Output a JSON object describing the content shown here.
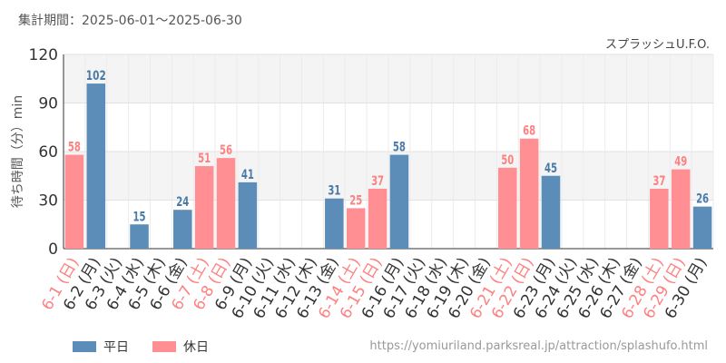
{
  "header": {
    "period_label": "集計期間：2025-06-01～2025-06-30",
    "attraction_name": "スプラッシュU.F.O."
  },
  "legend": {
    "weekday_label": "平日",
    "holiday_label": "休日"
  },
  "footer": {
    "source_url": "https://yomiuriland.parksreal.jp/attraction/splashufo.html"
  },
  "colors": {
    "weekday": "#5b8db8",
    "holiday": "#ff8f93",
    "holiday_text": "#ff8080",
    "weekday_text": "#4a7aa8"
  },
  "chart_data": {
    "type": "bar",
    "ylabel": "待ち時間（分）min",
    "ylim": [
      0,
      120
    ],
    "yticks": [
      0,
      30,
      60,
      90,
      120
    ],
    "categories": [
      "6-1 (日)",
      "6-2 (月)",
      "6-3 (火)",
      "6-4 (水)",
      "6-5 (木)",
      "6-6 (金)",
      "6-7 (土)",
      "6-8 (日)",
      "6-9 (月)",
      "6-10 (火)",
      "6-11 (水)",
      "6-12 (木)",
      "6-13 (金)",
      "6-14 (土)",
      "6-15 (日)",
      "6-16 (月)",
      "6-17 (火)",
      "6-18 (水)",
      "6-19 (木)",
      "6-20 (金)",
      "6-21 (土)",
      "6-22 (日)",
      "6-23 (月)",
      "6-24 (火)",
      "6-25 (水)",
      "6-26 (木)",
      "6-27 (金)",
      "6-28 (土)",
      "6-29 (日)",
      "6-30 (月)"
    ],
    "values": [
      58,
      102,
      null,
      15,
      null,
      24,
      51,
      56,
      41,
      null,
      null,
      null,
      31,
      25,
      37,
      58,
      null,
      null,
      null,
      null,
      50,
      68,
      45,
      null,
      null,
      null,
      null,
      37,
      49,
      26
    ],
    "holiday": [
      true,
      false,
      false,
      false,
      false,
      false,
      true,
      true,
      false,
      false,
      false,
      false,
      false,
      true,
      true,
      false,
      false,
      false,
      false,
      false,
      true,
      true,
      false,
      false,
      false,
      false,
      false,
      true,
      true,
      false
    ],
    "grid": true,
    "legend_position": "bottom-left"
  }
}
